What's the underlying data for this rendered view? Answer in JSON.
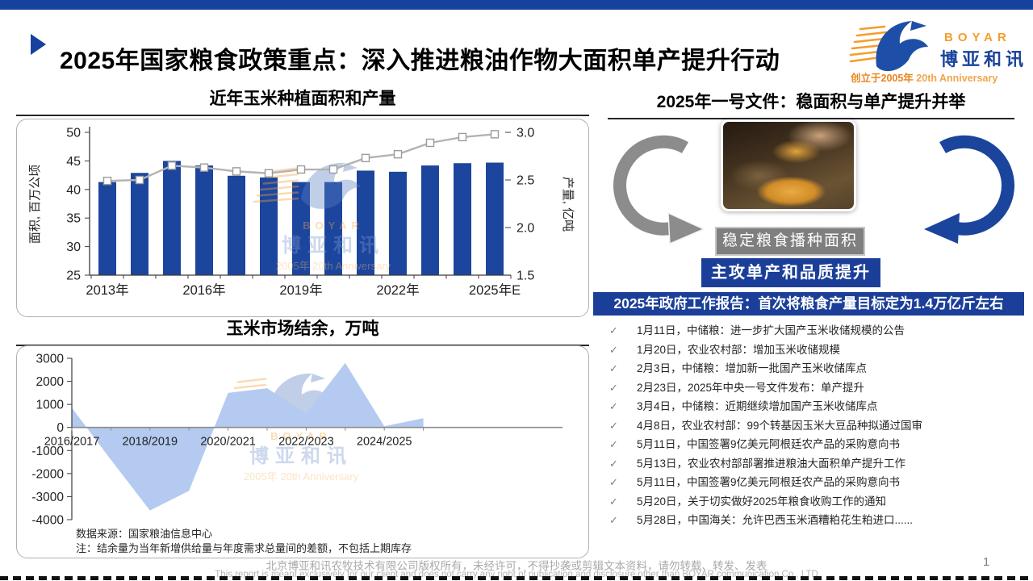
{
  "slide": {
    "title": "2025年国家粮食政策重点：深入推进粮油作物大面积单产提升行动",
    "page_number": "1"
  },
  "logo": {
    "name": "BOYAR",
    "cn": "博亚和讯",
    "founded": "创立于2005年",
    "anniversary": "20th Anniversary"
  },
  "right_panel": {
    "header": "2025年一号文件：稳面积与单产提升并举",
    "gray_box": "稳定粮食播种面积",
    "blue_box": "主攻单产和品质提升",
    "banner": "2025年政府工作报告：首次将粮食产量目标定为1.4万亿斤左右",
    "check_glyph": "✓",
    "events": [
      "1月11日，中储粮：进一步扩大国产玉米收储规模的公告",
      "1月20日，农业农村部：增加玉米收储规模",
      "2月3日，中储粮：增加新一批国产玉米收储库点",
      "2月23日，2025年中央一号文件发布：单产提升",
      "3月4日，中储粮：近期继续增加国产玉米收储库点",
      "4月8日，农业农村部：99个转基因玉米大豆品种拟通过国审",
      "5月11日，中国签署9亿美元阿根廷农产品的采购意向书",
      "5月13日，农业农村部部署推进粮油大面积单产提升工作",
      "5月11日，中国签署9亿美元阿根廷农产品的采购意向书",
      "5月20日，关于切实做好2025年粮食收购工作的通知",
      "5月28日，中国海关：允许巴西玉米酒糟粕花生粕进口......"
    ]
  },
  "footer": {
    "line1_cn": "北京博亚和讯农牧技术有限公司版权所有，未经许可，不得抄袭或剪辑文本资料，请勿转载、转发、发表",
    "line2_en": "This report is meant exclusively for our client and does not carry any right of publication and disclosure other than BOYAR communication Co., LTD"
  },
  "colors": {
    "brand_blue": "#17419e",
    "panel_blue": "#1b3f99",
    "bar_blue": "#1c459e",
    "line_gray": "#b3b3b3",
    "area_blue": "#b4caf0",
    "axis_dark": "#3c3c3c",
    "orange": "#f59d2a",
    "gray_box": "#7f7f7f"
  },
  "chart_data": [
    {
      "type": "bar",
      "title": "近年玉米种植面积和产量",
      "categories": [
        "2013年",
        "2014年",
        "2015年",
        "2016年",
        "2017年",
        "2018年",
        "2019年",
        "2020年",
        "2021年",
        "2022年",
        "2023年",
        "2024年",
        "2025年E"
      ],
      "x_tick_labels": [
        "2013年",
        "2016年",
        "2019年",
        "2022年",
        "2025年E"
      ],
      "series": [
        {
          "name": "面积",
          "type": "bar",
          "axis": "left",
          "values": [
            41.3,
            42.9,
            45.0,
            44.2,
            42.4,
            42.1,
            41.3,
            41.3,
            43.3,
            43.1,
            44.2,
            44.6,
            44.7
          ]
        },
        {
          "name": "产量",
          "type": "line",
          "axis": "right",
          "values": [
            2.49,
            2.5,
            2.65,
            2.63,
            2.59,
            2.57,
            2.61,
            2.61,
            2.73,
            2.77,
            2.89,
            2.95,
            2.98
          ]
        }
      ],
      "left_axis": {
        "label": "面积, 百万公顷",
        "min": 25,
        "max": 50,
        "step": 5
      },
      "right_axis": {
        "label": "产量, 亿吨",
        "min": 1.5,
        "max": 3.0,
        "step": 0.5
      },
      "grid": false,
      "legend": false
    },
    {
      "type": "area",
      "title": "玉米市场结余，万吨",
      "x": [
        "2016/2017",
        "2017/2018",
        "2018/2019",
        "2019/2020",
        "2020/2021",
        "2021/2022",
        "2022/2023",
        "2023/2024",
        "2024/2025",
        "2025/2026"
      ],
      "x_tick_labels": [
        "2016/2017",
        "2018/2019",
        "2020/2021",
        "2022/2023",
        "2024/2025"
      ],
      "values": [
        850,
        -1400,
        -3600,
        -2750,
        1500,
        1700,
        600,
        2800,
        50,
        400
      ],
      "y_axis": {
        "min": -4000,
        "max": 3000,
        "step": 1000
      },
      "source_note": "数据来源：国家粮油信息中心",
      "note": "注：结余量为当年新增供给量与年度需求总量间的差额，不包括上期库存",
      "grid": false,
      "legend": false
    }
  ]
}
